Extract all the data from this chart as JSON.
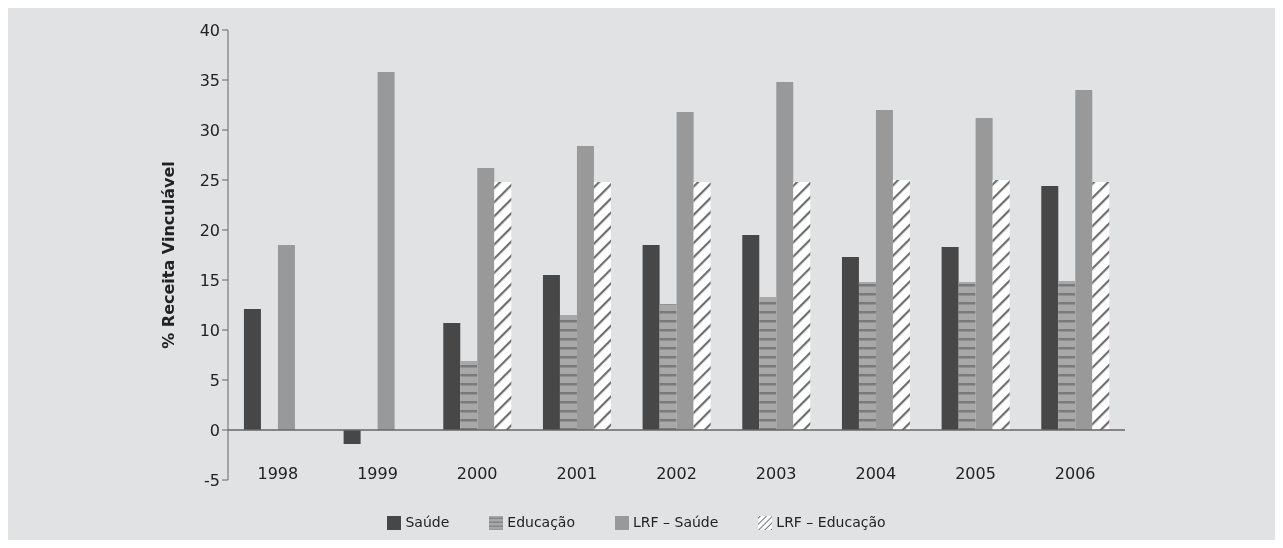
{
  "chart_data": {
    "type": "bar",
    "ylabel": "% Receita Vinculável",
    "categories": [
      "1998",
      "1999",
      "2000",
      "2001",
      "2002",
      "2003",
      "2004",
      "2005",
      "2006"
    ],
    "series": [
      {
        "name": "Saúde",
        "color": "#474747",
        "values": [
          12.1,
          -1.4,
          10.7,
          15.5,
          18.5,
          19.5,
          17.3,
          18.3,
          24.4
        ]
      },
      {
        "name": "Educação",
        "color": "#a8a8a8",
        "values": [
          null,
          null,
          6.9,
          11.5,
          12.6,
          13.3,
          14.8,
          14.8,
          14.9
        ]
      },
      {
        "name": "LRF – Saúde",
        "color": "#999999",
        "values": [
          18.5,
          35.8,
          26.2,
          28.4,
          31.8,
          34.8,
          32.0,
          31.2,
          34.0
        ]
      },
      {
        "name": "LRF – Educação",
        "color": "#ffffff",
        "values": [
          null,
          null,
          24.8,
          24.8,
          24.8,
          24.8,
          25.0,
          25.0,
          24.8
        ]
      }
    ],
    "ylim": [
      -5,
      40
    ],
    "yticks": [
      -5,
      0,
      5,
      10,
      15,
      20,
      25,
      30,
      35,
      40
    ],
    "legend": "bottom"
  }
}
